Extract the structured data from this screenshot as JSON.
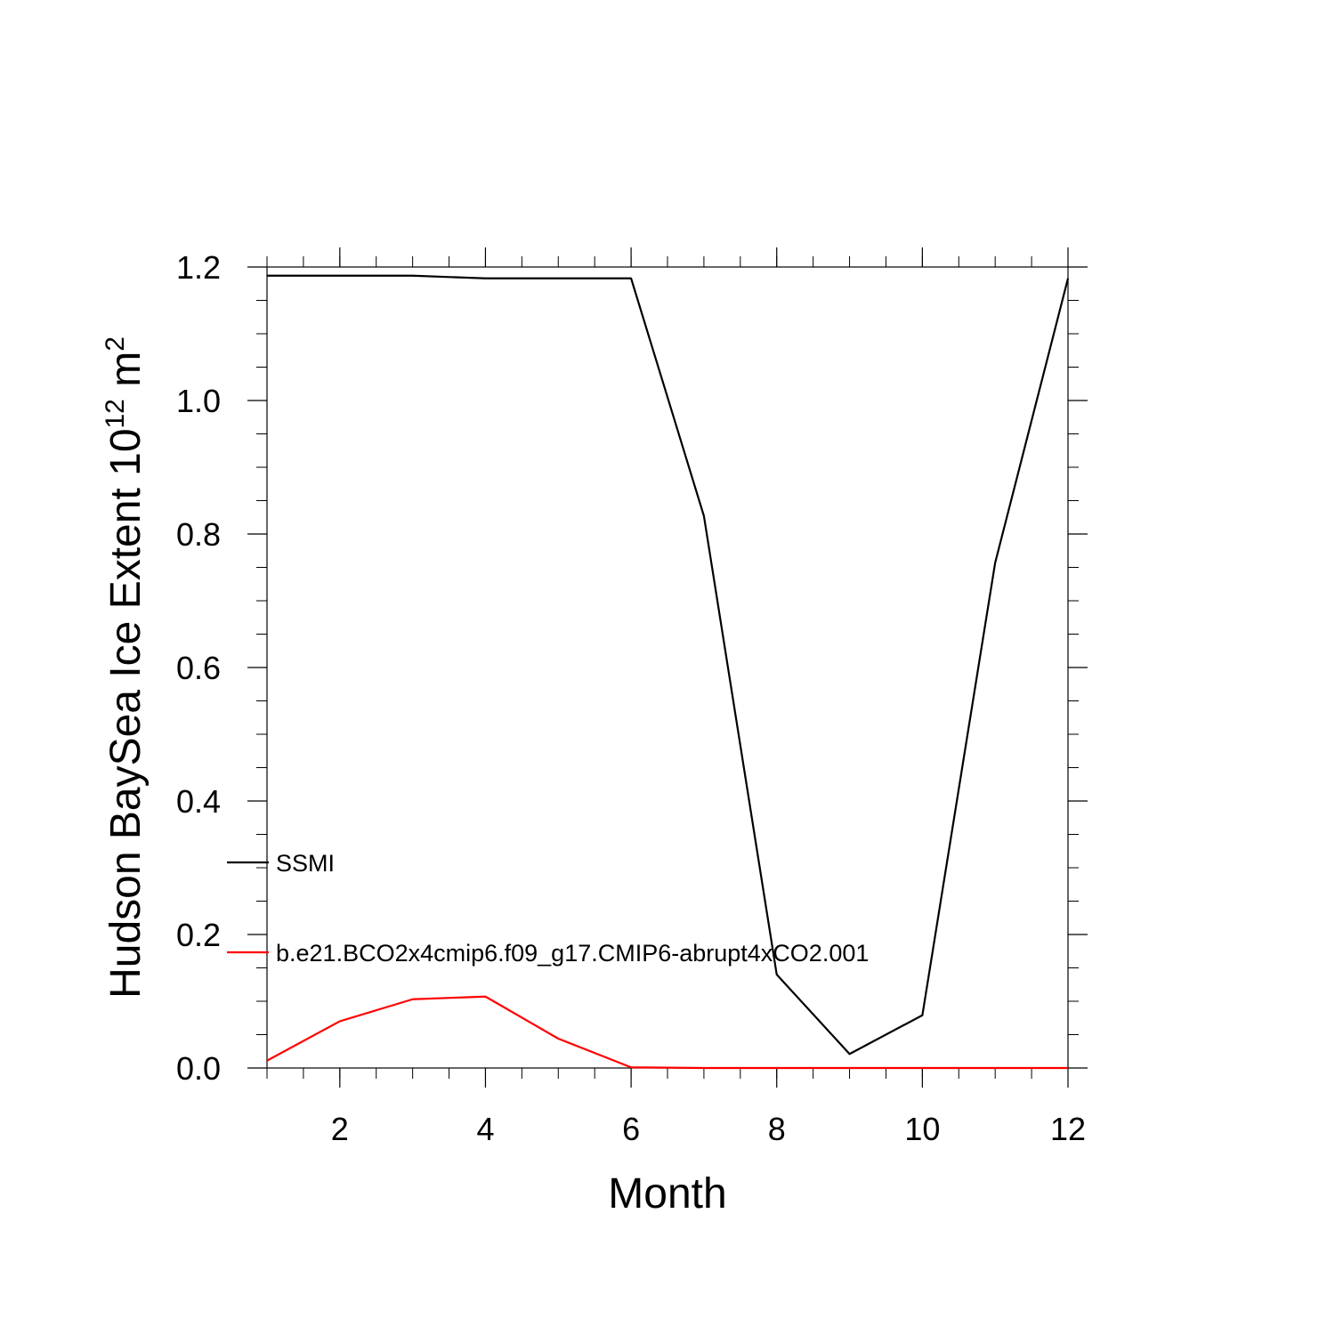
{
  "chart_data": {
    "type": "line",
    "xlabel": "Month",
    "ylabel": {
      "text": "Hudson BaySea Ice Extent 10",
      "exp1": "12",
      "unit": " m",
      "exp2": "2"
    },
    "xlim": [
      1,
      12
    ],
    "ylim": [
      0,
      1.2
    ],
    "xticks": [
      2,
      4,
      6,
      8,
      10,
      12
    ],
    "xtick_labels": [
      "2",
      "4",
      "6",
      "8",
      "10",
      "12"
    ],
    "yticks": [
      0,
      0.2,
      0.4,
      0.6,
      0.8,
      1.0,
      1.2
    ],
    "ytick_labels": [
      "0.0",
      "0.2",
      "0.4",
      "0.6",
      "0.8",
      "1.0",
      "1.2"
    ],
    "grid": false,
    "legend_placement": "lower-left",
    "x": [
      1,
      2,
      3,
      4,
      5,
      6,
      7,
      8,
      9,
      10,
      11,
      12
    ],
    "series": [
      {
        "name": "SSMI",
        "color": "#000000",
        "values": [
          1.187,
          1.187,
          1.187,
          1.183,
          1.183,
          1.183,
          0.827,
          0.14,
          0.021,
          0.079,
          0.757,
          1.183
        ]
      },
      {
        "name": "b.e21.BCO2x4cmip6.f09_g17.CMIP6-abrupt4xCO2.001",
        "color": "#ff0000",
        "values": [
          0.011,
          0.07,
          0.103,
          0.107,
          0.044,
          0.001,
          0.0,
          0.0,
          0.0,
          0.0,
          0.0,
          0.0
        ]
      }
    ]
  }
}
